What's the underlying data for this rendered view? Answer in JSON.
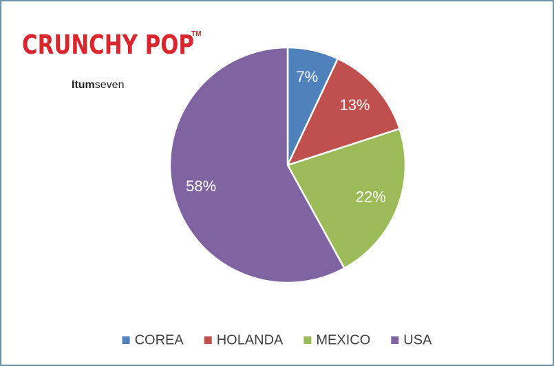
{
  "logo": "CRUNCHY POP",
  "logo_mark": "TM",
  "brand_bold": "Itum",
  "brand_rest": "seven",
  "chart_data": {
    "type": "pie",
    "categories": [
      "COREA",
      "HOLANDA",
      "MEXICO",
      "USA"
    ],
    "values": [
      7,
      13,
      22,
      58
    ],
    "value_labels": [
      "7%",
      "13%",
      "22%",
      "58%"
    ],
    "colors": [
      "#4f81bd",
      "#c0504d",
      "#9bbb59",
      "#8064a2"
    ],
    "legend": "bottom"
  }
}
